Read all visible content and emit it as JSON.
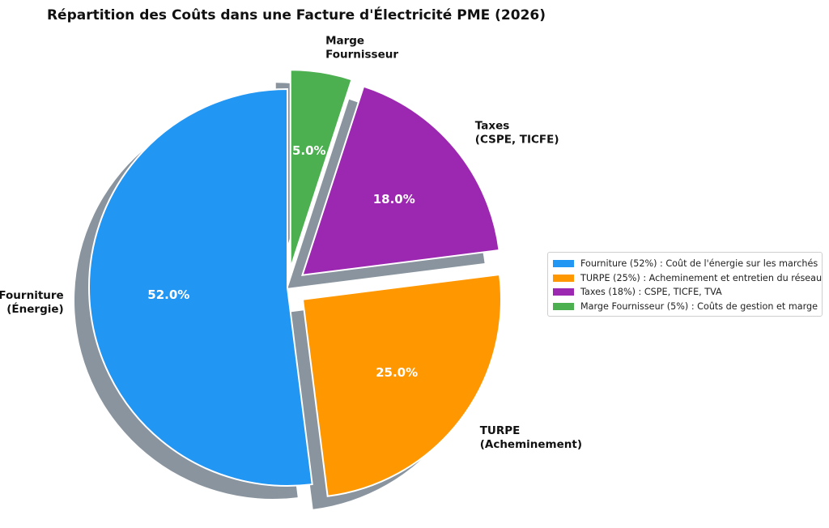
{
  "chart_data": {
    "type": "pie",
    "title": "Répartition des Coûts dans une Facture d'Électricité PME (2026)",
    "slices": [
      {
        "label_lines": [
          "Fourniture",
          "(Énergie)"
        ],
        "value": 52,
        "pct_label": "52.0%",
        "color": "#2196F3",
        "legend": "Fourniture (52%) : Coût de l'énergie sur les marchés",
        "exploded": false
      },
      {
        "label_lines": [
          "TURPE",
          "(Acheminement)"
        ],
        "value": 25,
        "pct_label": "25.0%",
        "color": "#FF9800",
        "legend": "TURPE (25%) : Acheminement et entretien du réseau",
        "exploded": true
      },
      {
        "label_lines": [
          "Taxes",
          "(CSPE, TICFE)"
        ],
        "value": 18,
        "pct_label": "18.0%",
        "color": "#9C27B0",
        "legend": "Taxes (18%) : CSPE, TICFE, TVA",
        "exploded": true
      },
      {
        "label_lines": [
          "Marge",
          "Fournisseur"
        ],
        "value": 5,
        "pct_label": "5.0%",
        "color": "#4CAF50",
        "legend": "Marge Fournisseur (5%) : Coûts de gestion et marge",
        "exploded": true
      }
    ],
    "start_angle": "top",
    "direction": "counterclockwise",
    "shadow": true,
    "legend_position": "right"
  }
}
